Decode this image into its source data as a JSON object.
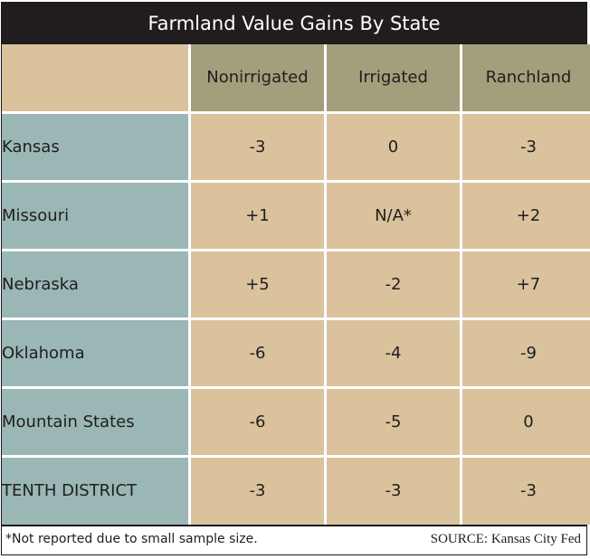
{
  "chart_data": {
    "type": "table",
    "title": "Farmland Value Gains By State",
    "columns": [
      "Nonirrigated",
      "Irrigated",
      "Ranchland"
    ],
    "rows": [
      {
        "label": "Kansas",
        "values": [
          "-3",
          "0",
          "-3"
        ]
      },
      {
        "label": "Missouri",
        "values": [
          "+1",
          "N/A*",
          "+2"
        ]
      },
      {
        "label": "Nebraska",
        "values": [
          "+5",
          "-2",
          "+7"
        ]
      },
      {
        "label": "Oklahoma",
        "values": [
          "-6",
          "-4",
          "-9"
        ]
      },
      {
        "label": "Mountain States",
        "values": [
          "-6",
          "-5",
          "0"
        ]
      },
      {
        "label": "TENTH DISTRICT",
        "values": [
          "-3",
          "-3",
          "-3"
        ]
      }
    ],
    "footnote": "*Not reported due to small sample size.",
    "source": "SOURCE: Kansas City Fed"
  },
  "colors": {
    "title_bg": "#211d1e",
    "header_bg": "#a39e7c",
    "state_bg": "#9ab7b5",
    "value_bg": "#d9c29c"
  }
}
